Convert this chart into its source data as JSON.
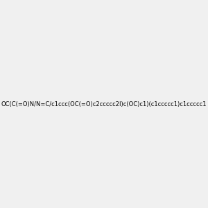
{
  "smiles": "OC(C(=O)N/N=C/c1ccc(OC(=O)c2ccccc2I)c(OC)c1)(c1ccccc1)c1ccccc1",
  "background_color": "#f0f0f0",
  "figure_size": [
    3.0,
    3.0
  ],
  "dpi": 100,
  "title": ""
}
